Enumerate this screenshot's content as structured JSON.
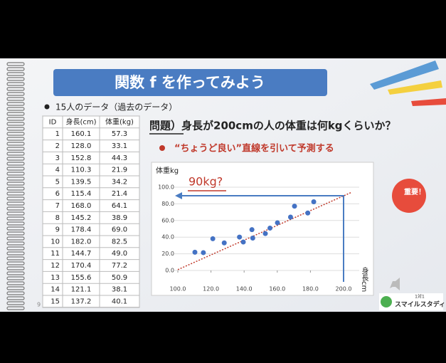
{
  "slide": {
    "title": "関数 f を作ってみよう",
    "bullet": "15人のデータ（過去のデータ）",
    "question": "問題）身長が200cmの人の体重は何kgくらいか？",
    "instruction": "“ちょうど良い”直線を引いて予測する",
    "badge": "重要！",
    "logo_small": "1対1",
    "logo": "スマイルスタディ",
    "page": "9"
  },
  "table": {
    "header": [
      "ID",
      "身長(cm)",
      "体重(kg)"
    ],
    "rows": [
      [
        "1",
        "160.1",
        "57.3"
      ],
      [
        "2",
        "128.0",
        "33.1"
      ],
      [
        "3",
        "152.8",
        "44.3"
      ],
      [
        "4",
        "110.3",
        "21.9"
      ],
      [
        "5",
        "139.5",
        "34.2"
      ],
      [
        "6",
        "115.4",
        "21.4"
      ],
      [
        "7",
        "168.0",
        "64.1"
      ],
      [
        "8",
        "145.2",
        "38.9"
      ],
      [
        "9",
        "178.4",
        "69.0"
      ],
      [
        "10",
        "182.0",
        "82.5"
      ],
      [
        "11",
        "144.7",
        "49.0"
      ],
      [
        "12",
        "170.4",
        "77.2"
      ],
      [
        "13",
        "155.6",
        "50.9"
      ],
      [
        "14",
        "121.1",
        "38.1"
      ],
      [
        "15",
        "137.2",
        "40.1"
      ]
    ]
  },
  "chart_data": {
    "type": "scatter",
    "y_label": "体重kg",
    "x_label": "身長cm",
    "annotation": "90kg?",
    "x": [
      160.1,
      128.0,
      152.8,
      110.3,
      139.5,
      115.4,
      168.0,
      145.2,
      178.4,
      182.0,
      144.7,
      170.4,
      155.6,
      121.1,
      137.2
    ],
    "values": [
      57.3,
      33.1,
      44.3,
      21.9,
      34.2,
      21.4,
      64.1,
      38.9,
      69.0,
      82.5,
      49.0,
      77.2,
      50.9,
      38.1,
      40.1
    ],
    "color": "#4472c4",
    "xlim": [
      100,
      200
    ],
    "ylim": [
      0,
      100
    ],
    "xticks": [
      {
        "value": 100,
        "label": "100.0"
      },
      {
        "value": 120,
        "label": "120.0"
      },
      {
        "value": 140,
        "label": "140.0"
      },
      {
        "value": 160,
        "label": "160.0"
      },
      {
        "value": 180,
        "label": "180.0"
      },
      {
        "value": 200,
        "label": "200.0"
      }
    ],
    "yticks": [
      {
        "value": 0,
        "label": "0.0"
      },
      {
        "value": 20,
        "label": "20.0"
      },
      {
        "value": 40,
        "label": "40.0"
      },
      {
        "value": 60,
        "label": "60.0"
      },
      {
        "value": 80,
        "label": "80.0"
      },
      {
        "value": 100,
        "label": "100.0"
      }
    ],
    "grid": true,
    "trend_line": {
      "color": "#c0392b",
      "x": [
        100,
        205
      ],
      "values": [
        1,
        94
      ]
    }
  }
}
